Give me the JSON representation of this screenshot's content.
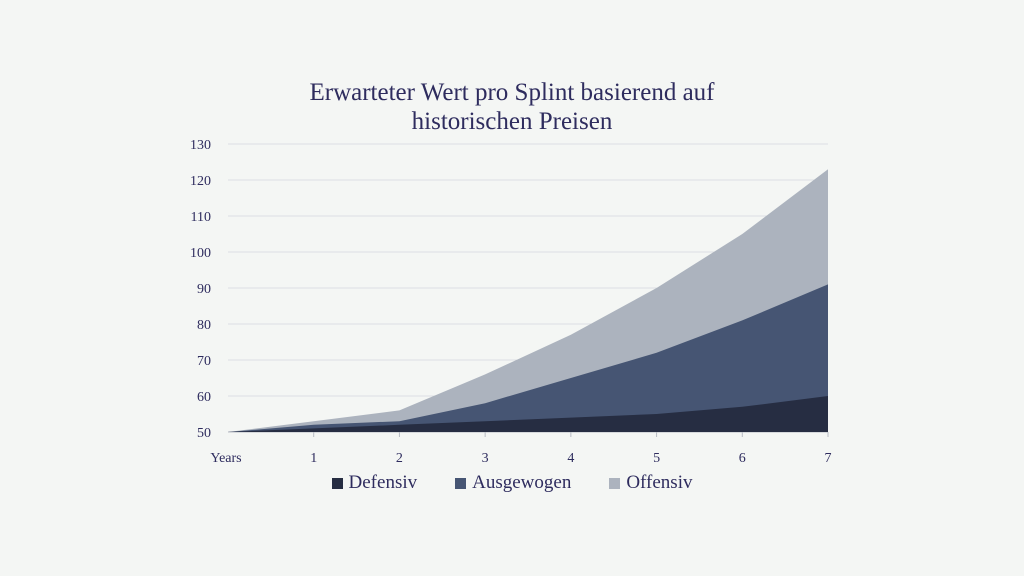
{
  "chart_data": {
    "type": "area",
    "stacked": true,
    "title_lines": [
      "Erwarteter Wert pro Splint basierend auf",
      "historischen Preisen"
    ],
    "x": [
      "Years",
      "1",
      "2",
      "3",
      "4",
      "5",
      "6",
      "7"
    ],
    "ylim": [
      50,
      130
    ],
    "yticks": [
      50,
      60,
      70,
      80,
      90,
      100,
      110,
      120,
      130
    ],
    "grid": true,
    "legend_position": "bottom",
    "series": [
      {
        "name": "Defensiv",
        "color": "#262d42",
        "values": [
          50,
          51,
          52,
          53,
          54,
          55,
          57,
          60
        ]
      },
      {
        "name": "Ausgewogen",
        "color": "#465573",
        "values": [
          50,
          52,
          53,
          58,
          65,
          72,
          81,
          91
        ]
      },
      {
        "name": "Offensiv",
        "color": "#acb3be",
        "values": [
          50,
          53,
          56,
          66,
          77,
          90,
          105,
          123
        ]
      }
    ]
  }
}
